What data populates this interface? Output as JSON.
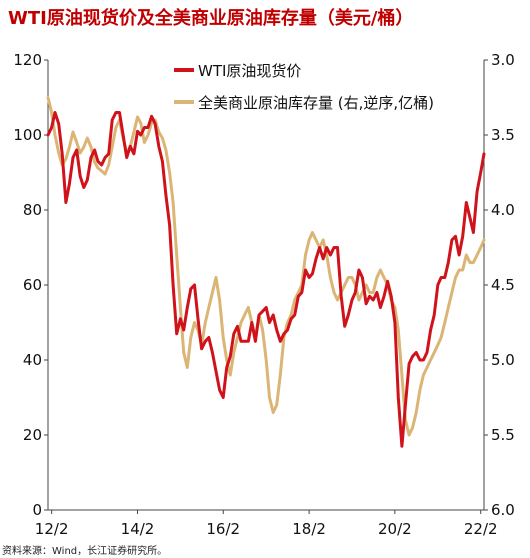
{
  "chart_data": {
    "type": "line",
    "title": "WTI原油现货价及全美商业原油库存量（美元/桶）",
    "x_ticks": [
      "12/2",
      "14/2",
      "16/2",
      "18/2",
      "20/2",
      "22/2"
    ],
    "y_left": {
      "range": [
        0,
        120
      ],
      "ticks": [
        "0",
        "20",
        "40",
        "60",
        "80",
        "100",
        "120"
      ]
    },
    "y_right": {
      "range": [
        3.0,
        6.0
      ],
      "inverted": true,
      "ticks": [
        "3.0",
        "3.5",
        "4.0",
        "4.5",
        "5.0",
        "5.5",
        "6.0"
      ]
    },
    "legend_placement": "top-center",
    "series": [
      {
        "name": "WTI原油现货价",
        "axis": "left",
        "color": "#d0121b",
        "x": [
          "2012-01",
          "2012-02",
          "2012-03",
          "2012-04",
          "2012-05",
          "2012-06",
          "2012-07",
          "2012-08",
          "2012-09",
          "2012-10",
          "2012-11",
          "2012-12",
          "2013-01",
          "2013-02",
          "2013-03",
          "2013-04",
          "2013-05",
          "2013-06",
          "2013-07",
          "2013-08",
          "2013-09",
          "2013-10",
          "2013-11",
          "2013-12",
          "2014-01",
          "2014-02",
          "2014-03",
          "2014-04",
          "2014-05",
          "2014-06",
          "2014-07",
          "2014-08",
          "2014-09",
          "2014-10",
          "2014-11",
          "2014-12",
          "2015-01",
          "2015-02",
          "2015-03",
          "2015-04",
          "2015-05",
          "2015-06",
          "2015-07",
          "2015-08",
          "2015-09",
          "2015-10",
          "2015-11",
          "2015-12",
          "2016-01",
          "2016-02",
          "2016-03",
          "2016-04",
          "2016-05",
          "2016-06",
          "2016-07",
          "2016-08",
          "2016-09",
          "2016-10",
          "2016-11",
          "2016-12",
          "2017-01",
          "2017-02",
          "2017-03",
          "2017-04",
          "2017-05",
          "2017-06",
          "2017-07",
          "2017-08",
          "2017-09",
          "2017-10",
          "2017-11",
          "2017-12",
          "2018-01",
          "2018-02",
          "2018-03",
          "2018-04",
          "2018-05",
          "2018-06",
          "2018-07",
          "2018-08",
          "2018-09",
          "2018-10",
          "2018-11",
          "2018-12",
          "2019-01",
          "2019-02",
          "2019-03",
          "2019-04",
          "2019-05",
          "2019-06",
          "2019-07",
          "2019-08",
          "2019-09",
          "2019-10",
          "2019-11",
          "2019-12",
          "2020-01",
          "2020-02",
          "2020-03",
          "2020-04",
          "2020-05",
          "2020-06",
          "2020-07",
          "2020-08",
          "2020-09",
          "2020-10",
          "2020-11",
          "2020-12",
          "2021-01",
          "2021-02",
          "2021-03",
          "2021-04",
          "2021-05",
          "2021-06",
          "2021-07",
          "2021-08",
          "2021-09",
          "2021-10",
          "2021-11",
          "2021-12",
          "2022-01",
          "2022-02",
          "2022-03"
        ],
        "y": [
          100,
          102,
          106,
          103,
          95,
          82,
          87,
          94,
          96,
          89,
          86,
          88,
          94,
          96,
          93,
          92,
          94,
          95,
          104,
          106,
          106,
          100,
          94,
          97,
          95,
          101,
          100,
          102,
          102,
          105,
          103,
          97,
          93,
          84,
          76,
          60,
          47,
          51,
          48,
          54,
          59,
          60,
          51,
          43,
          45,
          46,
          42,
          37,
          32,
          30,
          38,
          41,
          47,
          49,
          45,
          45,
          45,
          50,
          45,
          52,
          53,
          54,
          50,
          52,
          48,
          45,
          47,
          48,
          51,
          52,
          57,
          58,
          64,
          62,
          63,
          67,
          70,
          67,
          70,
          68,
          70,
          70,
          57,
          49,
          52,
          56,
          58,
          64,
          62,
          55,
          57,
          56,
          58,
          54,
          57,
          61,
          57,
          50,
          30,
          17,
          28,
          39,
          41,
          42,
          40,
          40,
          42,
          48,
          52,
          60,
          62,
          62,
          66,
          72,
          73,
          68,
          73,
          82,
          78,
          74,
          85,
          90,
          95
        ]
      },
      {
        "name": "全美商业原油库存量 (右,逆序,亿桶)",
        "axis": "right",
        "color": "#dbb576",
        "x": [
          "2012-01",
          "2012-02",
          "2012-03",
          "2012-04",
          "2012-05",
          "2012-06",
          "2012-07",
          "2012-08",
          "2012-09",
          "2012-10",
          "2012-11",
          "2012-12",
          "2013-01",
          "2013-02",
          "2013-03",
          "2013-04",
          "2013-05",
          "2013-06",
          "2013-07",
          "2013-08",
          "2013-09",
          "2013-10",
          "2013-11",
          "2013-12",
          "2014-01",
          "2014-02",
          "2014-03",
          "2014-04",
          "2014-05",
          "2014-06",
          "2014-07",
          "2014-08",
          "2014-09",
          "2014-10",
          "2014-11",
          "2014-12",
          "2015-01",
          "2015-02",
          "2015-03",
          "2015-04",
          "2015-05",
          "2015-06",
          "2015-07",
          "2015-08",
          "2015-09",
          "2015-10",
          "2015-11",
          "2015-12",
          "2016-01",
          "2016-02",
          "2016-03",
          "2016-04",
          "2016-05",
          "2016-06",
          "2016-07",
          "2016-08",
          "2016-09",
          "2016-10",
          "2016-11",
          "2016-12",
          "2017-01",
          "2017-02",
          "2017-03",
          "2017-04",
          "2017-05",
          "2017-06",
          "2017-07",
          "2017-08",
          "2017-09",
          "2017-10",
          "2017-11",
          "2017-12",
          "2018-01",
          "2018-02",
          "2018-03",
          "2018-04",
          "2018-05",
          "2018-06",
          "2018-07",
          "2018-08",
          "2018-09",
          "2018-10",
          "2018-11",
          "2018-12",
          "2019-01",
          "2019-02",
          "2019-03",
          "2019-04",
          "2019-05",
          "2019-06",
          "2019-07",
          "2019-08",
          "2019-09",
          "2019-10",
          "2019-11",
          "2019-12",
          "2020-01",
          "2020-02",
          "2020-03",
          "2020-04",
          "2020-05",
          "2020-06",
          "2020-07",
          "2020-08",
          "2020-09",
          "2020-10",
          "2020-11",
          "2020-12",
          "2021-01",
          "2021-02",
          "2021-03",
          "2021-04",
          "2021-05",
          "2021-06",
          "2021-07",
          "2021-08",
          "2021-09",
          "2021-10",
          "2021-11",
          "2021-12",
          "2022-01",
          "2022-02",
          "2022-03"
        ],
        "y": [
          3.25,
          3.35,
          3.5,
          3.62,
          3.7,
          3.66,
          3.58,
          3.48,
          3.55,
          3.62,
          3.58,
          3.52,
          3.58,
          3.68,
          3.72,
          3.74,
          3.76,
          3.7,
          3.58,
          3.45,
          3.4,
          3.52,
          3.62,
          3.58,
          3.48,
          3.38,
          3.42,
          3.55,
          3.5,
          3.42,
          3.4,
          3.48,
          3.52,
          3.6,
          3.75,
          3.95,
          4.3,
          4.65,
          4.95,
          5.05,
          4.85,
          4.75,
          4.8,
          4.9,
          4.75,
          4.65,
          4.55,
          4.45,
          4.6,
          4.85,
          5.0,
          5.1,
          4.95,
          4.85,
          4.75,
          4.7,
          4.65,
          4.75,
          4.85,
          4.7,
          4.8,
          5.0,
          5.25,
          5.35,
          5.3,
          5.1,
          4.85,
          4.75,
          4.7,
          4.6,
          4.55,
          4.5,
          4.3,
          4.2,
          4.15,
          4.2,
          4.25,
          4.2,
          4.3,
          4.45,
          4.55,
          4.6,
          4.55,
          4.5,
          4.45,
          4.45,
          4.5,
          4.6,
          4.55,
          4.5,
          4.55,
          4.55,
          4.45,
          4.4,
          4.45,
          4.5,
          4.6,
          4.65,
          4.8,
          5.1,
          5.4,
          5.5,
          5.45,
          5.35,
          5.2,
          5.1,
          5.05,
          5.0,
          4.95,
          4.9,
          4.85,
          4.75,
          4.65,
          4.55,
          4.45,
          4.4,
          4.4,
          4.3,
          4.35,
          4.35,
          4.3,
          4.25,
          4.2
        ]
      }
    ]
  },
  "source_note": "资料来源：Wind，长江证券研究所。"
}
